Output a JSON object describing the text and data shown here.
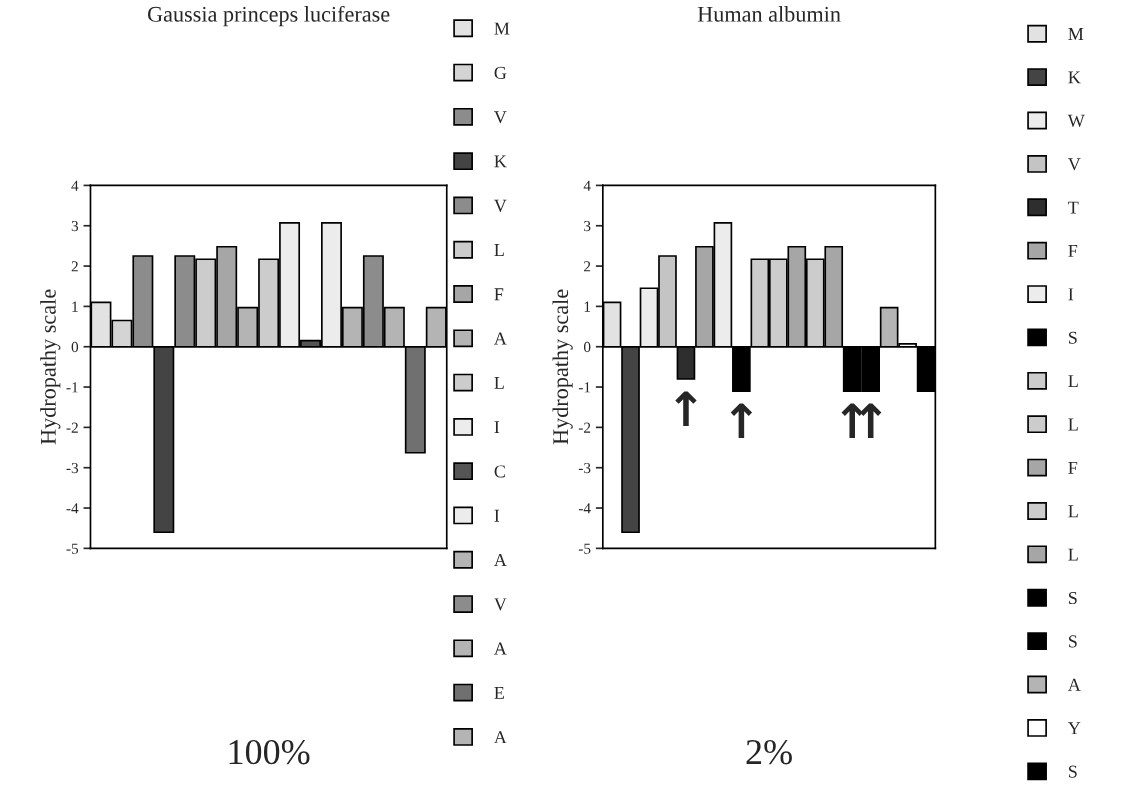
{
  "chart_data": [
    {
      "type": "bar",
      "title": "Gaussia princeps luciferase",
      "ylabel": "Hydropathy scale",
      "categories": [
        null,
        null,
        null,
        null,
        null,
        null,
        null,
        null,
        null,
        null,
        null,
        null,
        null,
        null,
        null,
        null,
        null
      ],
      "series": [
        {
          "name": "M",
          "color": "#e2e2e2",
          "values": [
            1.1,
            null,
            null,
            null,
            null,
            null,
            null,
            null,
            null,
            null,
            null,
            null,
            null,
            null,
            null,
            null,
            null
          ]
        },
        {
          "name": "G",
          "color": "#d4d4d4",
          "values": [
            null,
            0.65,
            null,
            null,
            null,
            null,
            null,
            null,
            null,
            null,
            null,
            null,
            null,
            null,
            null,
            null,
            null
          ]
        },
        {
          "name": "V",
          "color": "#8c8c8c",
          "values": [
            null,
            null,
            2.25,
            null,
            null,
            null,
            null,
            null,
            null,
            null,
            null,
            null,
            null,
            null,
            null,
            null,
            null
          ]
        },
        {
          "name": "K",
          "color": "#444444",
          "values": [
            null,
            null,
            null,
            -4.6,
            null,
            null,
            null,
            null,
            null,
            null,
            null,
            null,
            null,
            null,
            null,
            null,
            null
          ]
        },
        {
          "name": "V",
          "color": "#8c8c8c",
          "values": [
            null,
            null,
            null,
            null,
            2.25,
            null,
            null,
            null,
            null,
            null,
            null,
            null,
            null,
            null,
            null,
            null,
            null
          ]
        },
        {
          "name": "L",
          "color": "#cccccc",
          "values": [
            null,
            null,
            null,
            null,
            null,
            2.17,
            null,
            null,
            null,
            null,
            null,
            null,
            null,
            null,
            null,
            null,
            null
          ]
        },
        {
          "name": "F",
          "color": "#a6a6a6",
          "values": [
            null,
            null,
            null,
            null,
            null,
            null,
            2.48,
            null,
            null,
            null,
            null,
            null,
            null,
            null,
            null,
            null,
            null
          ]
        },
        {
          "name": "A",
          "color": "#b4b4b4",
          "values": [
            null,
            null,
            null,
            null,
            null,
            null,
            null,
            0.97,
            null,
            null,
            null,
            null,
            null,
            null,
            null,
            null,
            null
          ]
        },
        {
          "name": "L",
          "color": "#cccccc",
          "values": [
            null,
            null,
            null,
            null,
            null,
            null,
            null,
            null,
            2.17,
            null,
            null,
            null,
            null,
            null,
            null,
            null,
            null
          ]
        },
        {
          "name": "I",
          "color": "#ececec",
          "values": [
            null,
            null,
            null,
            null,
            null,
            null,
            null,
            null,
            null,
            3.07,
            null,
            null,
            null,
            null,
            null,
            null,
            null
          ]
        },
        {
          "name": "C",
          "color": "#555555",
          "values": [
            null,
            null,
            null,
            null,
            null,
            null,
            null,
            null,
            null,
            null,
            0.15,
            null,
            null,
            null,
            null,
            null,
            null
          ]
        },
        {
          "name": "I",
          "color": "#ececec",
          "values": [
            null,
            null,
            null,
            null,
            null,
            null,
            null,
            null,
            null,
            null,
            null,
            3.07,
            null,
            null,
            null,
            null,
            null
          ]
        },
        {
          "name": "A",
          "color": "#b4b4b4",
          "values": [
            null,
            null,
            null,
            null,
            null,
            null,
            null,
            null,
            null,
            null,
            null,
            null,
            0.97,
            null,
            null,
            null,
            null
          ]
        },
        {
          "name": "V",
          "color": "#8c8c8c",
          "values": [
            null,
            null,
            null,
            null,
            null,
            null,
            null,
            null,
            null,
            null,
            null,
            null,
            null,
            2.25,
            null,
            null,
            null
          ]
        },
        {
          "name": "A",
          "color": "#b4b4b4",
          "values": [
            null,
            null,
            null,
            null,
            null,
            null,
            null,
            null,
            null,
            null,
            null,
            null,
            null,
            null,
            0.97,
            null,
            null
          ]
        },
        {
          "name": "E",
          "color": "#707070",
          "values": [
            null,
            null,
            null,
            null,
            null,
            null,
            null,
            null,
            null,
            null,
            null,
            null,
            null,
            null,
            null,
            -2.63,
            null
          ]
        },
        {
          "name": "A",
          "color": "#b4b4b4",
          "values": [
            null,
            null,
            null,
            null,
            null,
            null,
            null,
            null,
            null,
            null,
            null,
            null,
            null,
            null,
            null,
            null,
            0.97
          ]
        }
      ],
      "ylim": [
        -5,
        4
      ],
      "yticks": [
        -5,
        -4,
        -3,
        -2,
        -1,
        0,
        1,
        2,
        3,
        4
      ],
      "legend": "right",
      "tick_labels": "y",
      "annotations": [
        "100%"
      ]
    },
    {
      "type": "bar",
      "title": "Human albumin",
      "ylabel": "Hydropathy scale",
      "categories": [
        null,
        null,
        null,
        null,
        null,
        null,
        null,
        null,
        null,
        null,
        null,
        null,
        null,
        null,
        null,
        null,
        null,
        null
      ],
      "series": [
        {
          "name": "M",
          "color": "#e2e2e2",
          "values": [
            1.1,
            null,
            null,
            null,
            null,
            null,
            null,
            null,
            null,
            null,
            null,
            null,
            null,
            null,
            null,
            null,
            null,
            null
          ]
        },
        {
          "name": "K",
          "color": "#444444",
          "values": [
            null,
            -4.6,
            null,
            null,
            null,
            null,
            null,
            null,
            null,
            null,
            null,
            null,
            null,
            null,
            null,
            null,
            null,
            null
          ]
        },
        {
          "name": "W",
          "color": "#ececec",
          "values": [
            null,
            null,
            1.45,
            null,
            null,
            null,
            null,
            null,
            null,
            null,
            null,
            null,
            null,
            null,
            null,
            null,
            null,
            null
          ]
        },
        {
          "name": "V",
          "color": "#c4c4c4",
          "values": [
            null,
            null,
            null,
            2.25,
            null,
            null,
            null,
            null,
            null,
            null,
            null,
            null,
            null,
            null,
            null,
            null,
            null,
            null
          ]
        },
        {
          "name": "T",
          "color": "#2e2e2e",
          "values": [
            null,
            null,
            null,
            null,
            -0.8,
            null,
            null,
            null,
            null,
            null,
            null,
            null,
            null,
            null,
            null,
            null,
            null,
            null
          ]
        },
        {
          "name": "F",
          "color": "#a6a6a6",
          "values": [
            null,
            null,
            null,
            null,
            null,
            2.48,
            null,
            null,
            null,
            null,
            null,
            null,
            null,
            null,
            null,
            null,
            null,
            null
          ]
        },
        {
          "name": "I",
          "color": "#ececec",
          "values": [
            null,
            null,
            null,
            null,
            null,
            null,
            3.07,
            null,
            null,
            null,
            null,
            null,
            null,
            null,
            null,
            null,
            null,
            null
          ]
        },
        {
          "name": "S",
          "color": "#000000",
          "values": [
            null,
            null,
            null,
            null,
            null,
            null,
            null,
            -1.1,
            null,
            null,
            null,
            null,
            null,
            null,
            null,
            null,
            null,
            null
          ]
        },
        {
          "name": "L",
          "color": "#cccccc",
          "values": [
            null,
            null,
            null,
            null,
            null,
            null,
            null,
            null,
            2.17,
            null,
            null,
            null,
            null,
            null,
            null,
            null,
            null,
            null
          ]
        },
        {
          "name": "L",
          "color": "#cccccc",
          "values": [
            null,
            null,
            null,
            null,
            null,
            null,
            null,
            null,
            null,
            2.17,
            null,
            null,
            null,
            null,
            null,
            null,
            null,
            null
          ]
        },
        {
          "name": "F",
          "color": "#a6a6a6",
          "values": [
            null,
            null,
            null,
            null,
            null,
            null,
            null,
            null,
            null,
            null,
            2.48,
            null,
            null,
            null,
            null,
            null,
            null,
            null
          ]
        },
        {
          "name": "L",
          "color": "#cccccc",
          "values": [
            null,
            null,
            null,
            null,
            null,
            null,
            null,
            null,
            null,
            null,
            null,
            2.17,
            null,
            null,
            null,
            null,
            null,
            null
          ]
        },
        {
          "name": "L",
          "color": "#a6a6a6",
          "values": [
            null,
            null,
            null,
            null,
            null,
            null,
            null,
            null,
            null,
            null,
            null,
            null,
            2.48,
            null,
            null,
            null,
            null,
            null
          ]
        },
        {
          "name": "S",
          "color": "#000000",
          "values": [
            null,
            null,
            null,
            null,
            null,
            null,
            null,
            null,
            null,
            null,
            null,
            null,
            null,
            -1.1,
            null,
            null,
            null,
            null
          ]
        },
        {
          "name": "S",
          "color": "#000000",
          "values": [
            null,
            null,
            null,
            null,
            null,
            null,
            null,
            null,
            null,
            null,
            null,
            null,
            null,
            null,
            -1.1,
            null,
            null,
            null
          ]
        },
        {
          "name": "A",
          "color": "#b4b4b4",
          "values": [
            null,
            null,
            null,
            null,
            null,
            null,
            null,
            null,
            null,
            null,
            null,
            null,
            null,
            null,
            null,
            0.97,
            null,
            null
          ]
        },
        {
          "name": "Y",
          "color": "#ffffff",
          "values": [
            null,
            null,
            null,
            null,
            null,
            null,
            null,
            null,
            null,
            null,
            null,
            null,
            null,
            null,
            null,
            null,
            0.07,
            null
          ]
        },
        {
          "name": "S",
          "color": "#000000",
          "values": [
            null,
            null,
            null,
            null,
            null,
            null,
            null,
            null,
            null,
            null,
            null,
            null,
            null,
            null,
            null,
            null,
            null,
            -1.1
          ]
        }
      ],
      "ylim": [
        -5,
        4
      ],
      "yticks": [
        -5,
        -4,
        -3,
        -2,
        -1,
        0,
        1,
        2,
        3,
        4
      ],
      "legend": "right",
      "tick_labels": "y",
      "annotations": [
        {
          "text": "↑",
          "y": -0.8
        },
        {
          "text": "↑",
          "y": -1.1
        },
        {
          "text": "↑",
          "y": -1.1
        },
        {
          "text": "↑",
          "y": -1.1
        },
        "2%"
      ]
    }
  ]
}
